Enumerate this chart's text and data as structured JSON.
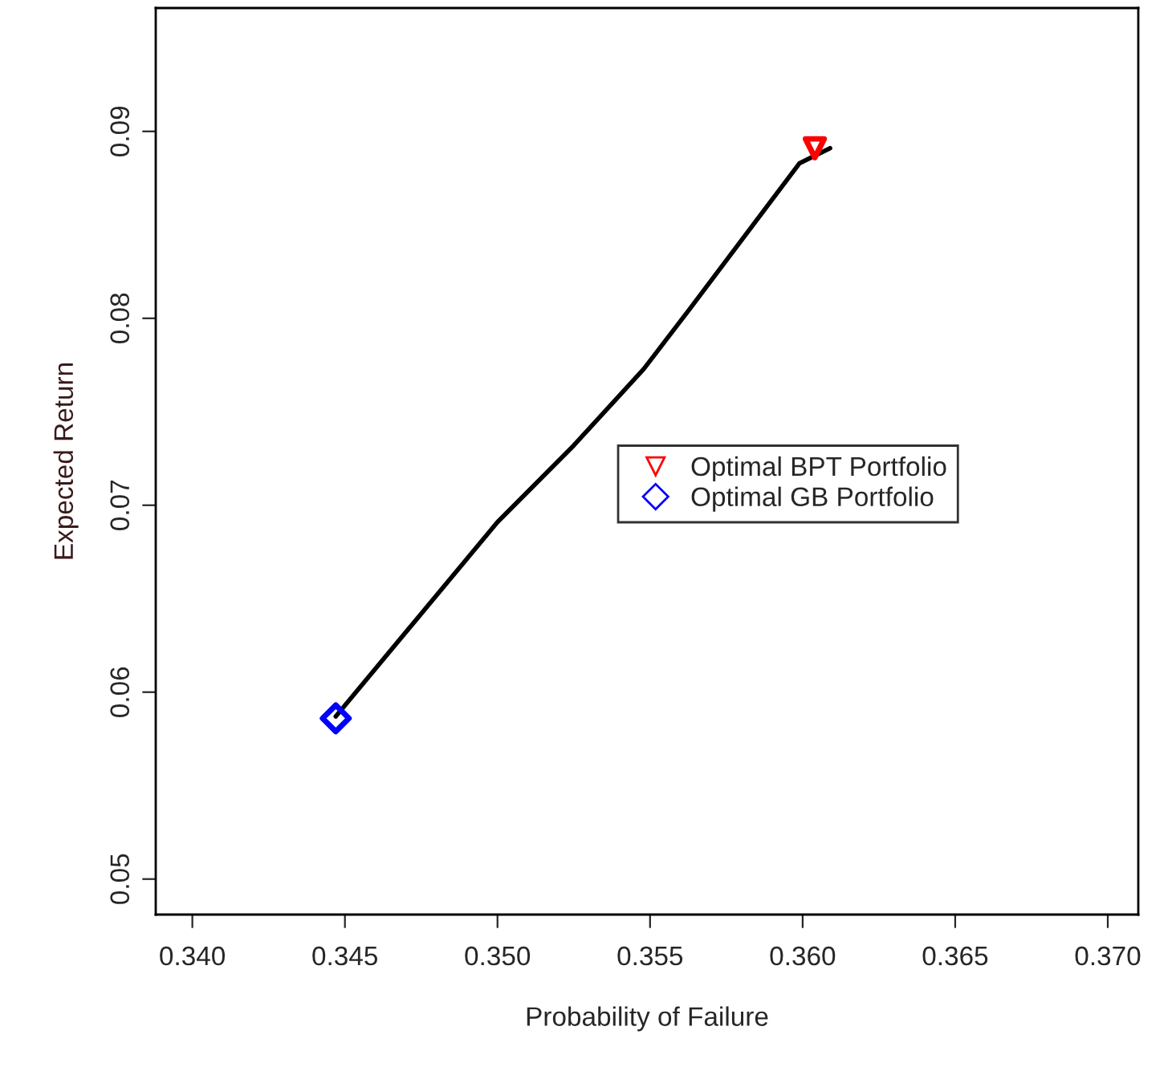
{
  "chart_data": {
    "type": "line",
    "xlabel": "Probability of Failure",
    "ylabel": "Expected Return",
    "xlim": [
      0.3388,
      0.371
    ],
    "ylim": [
      0.0481,
      0.0966
    ],
    "xticks": [
      {
        "value": 0.34,
        "label": "0.340"
      },
      {
        "value": 0.345,
        "label": "0.345"
      },
      {
        "value": 0.35,
        "label": "0.350"
      },
      {
        "value": 0.355,
        "label": "0.355"
      },
      {
        "value": 0.36,
        "label": "0.360"
      },
      {
        "value": 0.365,
        "label": "0.365"
      },
      {
        "value": 0.37,
        "label": "0.370"
      }
    ],
    "yticks": [
      0.05,
      0.06,
      0.07,
      0.08,
      0.09
    ],
    "grid": false,
    "legend": "right",
    "series": [
      {
        "color": "#000000",
        "marker": "none",
        "line_style": "solid",
        "x": [
          0.3447,
          0.35,
          0.3525,
          0.3548,
          0.3563,
          0.3599,
          0.3609
        ],
        "values": [
          0.0587,
          0.0691,
          0.0732,
          0.0773,
          0.0805,
          0.0883,
          0.0891
        ]
      },
      {
        "type": "scatter",
        "name": "Optimal BPT Portfolio",
        "color": "#ff0000",
        "marker": "triangle",
        "x": [
          0.3604
        ],
        "values": [
          0.0891
        ]
      },
      {
        "type": "scatter",
        "name": "Optimal GB Portfolio",
        "color": "#0000ff",
        "marker": "diamond",
        "x": [
          0.3447
        ],
        "values": [
          0.0586
        ]
      }
    ]
  }
}
